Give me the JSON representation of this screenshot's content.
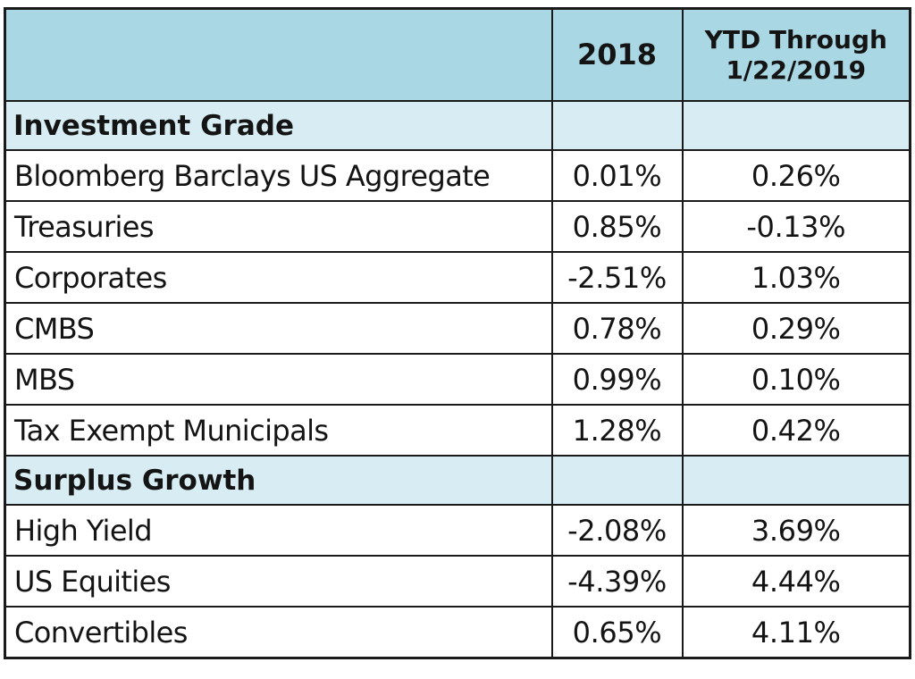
{
  "chart_data": {
    "type": "table",
    "columns": [
      "",
      "2018",
      "YTD Through 1/22/2019"
    ],
    "header": {
      "label": "",
      "col_2018": "2018",
      "col_ytd_line1": "YTD Through",
      "col_ytd_line2": "1/22/2019"
    },
    "sections": [
      {
        "name": "Investment Grade",
        "rows": [
          {
            "label": "Bloomberg Barclays US Aggregate",
            "v2018": "0.01%",
            "ytd": "0.26%"
          },
          {
            "label": "Treasuries",
            "v2018": "0.85%",
            "ytd": "-0.13%"
          },
          {
            "label": "Corporates",
            "v2018": "-2.51%",
            "ytd": "1.03%"
          },
          {
            "label": "CMBS",
            "v2018": "0.78%",
            "ytd": "0.29%"
          },
          {
            "label": "MBS",
            "v2018": "0.99%",
            "ytd": "0.10%"
          },
          {
            "label": "Tax Exempt Municipals",
            "v2018": "1.28%",
            "ytd": "0.42%"
          }
        ]
      },
      {
        "name": "Surplus Growth",
        "rows": [
          {
            "label": "High Yield",
            "v2018": "-2.08%",
            "ytd": "3.69%"
          },
          {
            "label": "US Equities",
            "v2018": "-4.39%",
            "ytd": "4.44%"
          },
          {
            "label": "Convertibles",
            "v2018": "0.65%",
            "ytd": "4.11%"
          }
        ]
      }
    ],
    "colors": {
      "header_bg": "#a9d8e4",
      "section_bg": "#d7edf3",
      "border": "#1a1a1a",
      "text": "#141414"
    }
  }
}
